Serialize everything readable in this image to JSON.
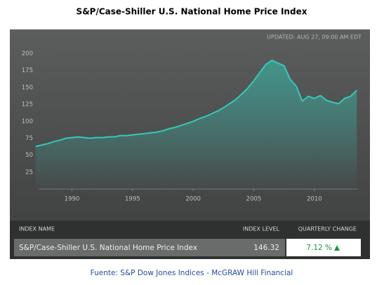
{
  "title": "S&P/Case-Shiller U.S. National Home Price Index",
  "chart_data": {
    "type": "line",
    "annotation": "UPDATED: AUG 27, 09:00 AM EDT",
    "x": [
      1987,
      1987.5,
      1988,
      1988.5,
      1989,
      1989.5,
      1990,
      1990.5,
      1991,
      1991.5,
      1992,
      1992.5,
      1993,
      1993.5,
      1994,
      1994.5,
      1995,
      1995.5,
      1996,
      1996.5,
      1997,
      1997.5,
      1998,
      1998.5,
      1999,
      1999.5,
      2000,
      2000.5,
      2001,
      2001.5,
      2002,
      2002.5,
      2003,
      2003.5,
      2004,
      2004.5,
      2005,
      2005.5,
      2006,
      2006.5,
      2007,
      2007.5,
      2008,
      2008.5,
      2009,
      2009.5,
      2010,
      2010.5,
      2011,
      2011.5,
      2012,
      2012.5,
      2013,
      2013.5
    ],
    "values": [
      63,
      65,
      67,
      70,
      72,
      75,
      76,
      77,
      76,
      75,
      76,
      76,
      77,
      77,
      79,
      79,
      80,
      81,
      82,
      83,
      84,
      86,
      89,
      91,
      94,
      97,
      100,
      104,
      107,
      111,
      115,
      120,
      126,
      132,
      140,
      149,
      160,
      172,
      184,
      190,
      186,
      182,
      162,
      152,
      130,
      137,
      134,
      138,
      131,
      128,
      126,
      134,
      137,
      146
    ],
    "color": "#35c9b9",
    "xlim": [
      1987.25,
      2013.6
    ],
    "ylim": [
      0,
      215
    ],
    "xticks": [
      1990,
      1995,
      2000,
      2005,
      2010
    ],
    "yticks": [
      25,
      50,
      75,
      100,
      125,
      150,
      175,
      200
    ],
    "grid": false
  },
  "table": {
    "headers": [
      "INDEX NAME",
      "INDEX LEVEL",
      "QUARTERLY CHANGE"
    ],
    "rows": [
      [
        "S&P/Case-Shiller U.S. National Home Price Index",
        "146.32",
        "7.12 %"
      ]
    ]
  },
  "source": "Fuente: S&P Dow Jones Indices - McGRAW Hill Financial"
}
